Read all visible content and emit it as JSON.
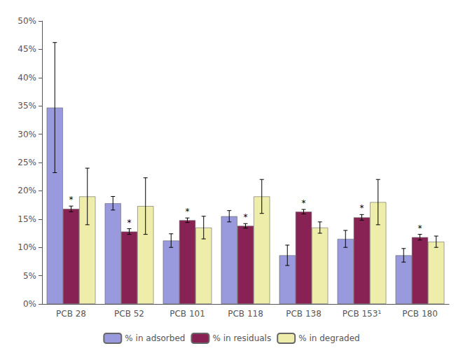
{
  "chart_data": {
    "type": "bar",
    "categories": [
      "PCB 28",
      "PCB 52",
      "PCB 101",
      "PCB 118",
      "PCB 138",
      "PCB 153¹",
      "PCB 180"
    ],
    "series": [
      {
        "name": "% in adsorbed",
        "color": "#9999DD",
        "values": [
          0.347,
          0.178,
          0.112,
          0.155,
          0.086,
          0.115,
          0.086
        ],
        "errors": [
          0.115,
          0.012,
          0.012,
          0.01,
          0.018,
          0.015,
          0.012
        ]
      },
      {
        "name": "% in residuals",
        "color": "#882255",
        "values": [
          0.168,
          0.128,
          0.148,
          0.138,
          0.163,
          0.153,
          0.118
        ],
        "errors": [
          0.005,
          0.005,
          0.004,
          0.004,
          0.004,
          0.005,
          0.005
        ]
      },
      {
        "name": "% in degraded",
        "color": "#EEEEAA",
        "values": [
          0.19,
          0.173,
          0.135,
          0.19,
          0.135,
          0.18,
          0.11
        ],
        "errors": [
          0.05,
          0.05,
          0.02,
          0.03,
          0.01,
          0.04,
          0.01
        ]
      }
    ],
    "ylim": [
      0,
      0.5
    ],
    "yticks": [
      {
        "value": 0.0,
        "label": "0%"
      },
      {
        "value": 0.05,
        "label": "5%"
      },
      {
        "value": 0.1,
        "label": "10%"
      },
      {
        "value": 0.15,
        "label": "15%"
      },
      {
        "value": 0.2,
        "label": "20%"
      },
      {
        "value": 0.25,
        "label": "25%"
      },
      {
        "value": 0.3,
        "label": "30%"
      },
      {
        "value": 0.35,
        "label": "35%"
      },
      {
        "value": 0.4,
        "label": "40%"
      },
      {
        "value": 0.45,
        "label": "45%"
      },
      {
        "value": 0.5,
        "label": "50%"
      }
    ],
    "grid": false,
    "legend": "bottom",
    "annotations": [
      {
        "text": "*",
        "series": "% in residuals",
        "category": "PCB 28"
      },
      {
        "text": "*",
        "series": "% in residuals",
        "category": "PCB 52"
      },
      {
        "text": "*",
        "series": "% in residuals",
        "category": "PCB 101"
      },
      {
        "text": "*",
        "series": "% in residuals",
        "category": "PCB 118"
      },
      {
        "text": "*",
        "series": "% in residuals",
        "category": "PCB 138"
      },
      {
        "text": "*",
        "series": "% in residuals",
        "category": "PCB 153¹"
      },
      {
        "text": "*",
        "series": "% in residuals",
        "category": "PCB 180"
      }
    ]
  }
}
